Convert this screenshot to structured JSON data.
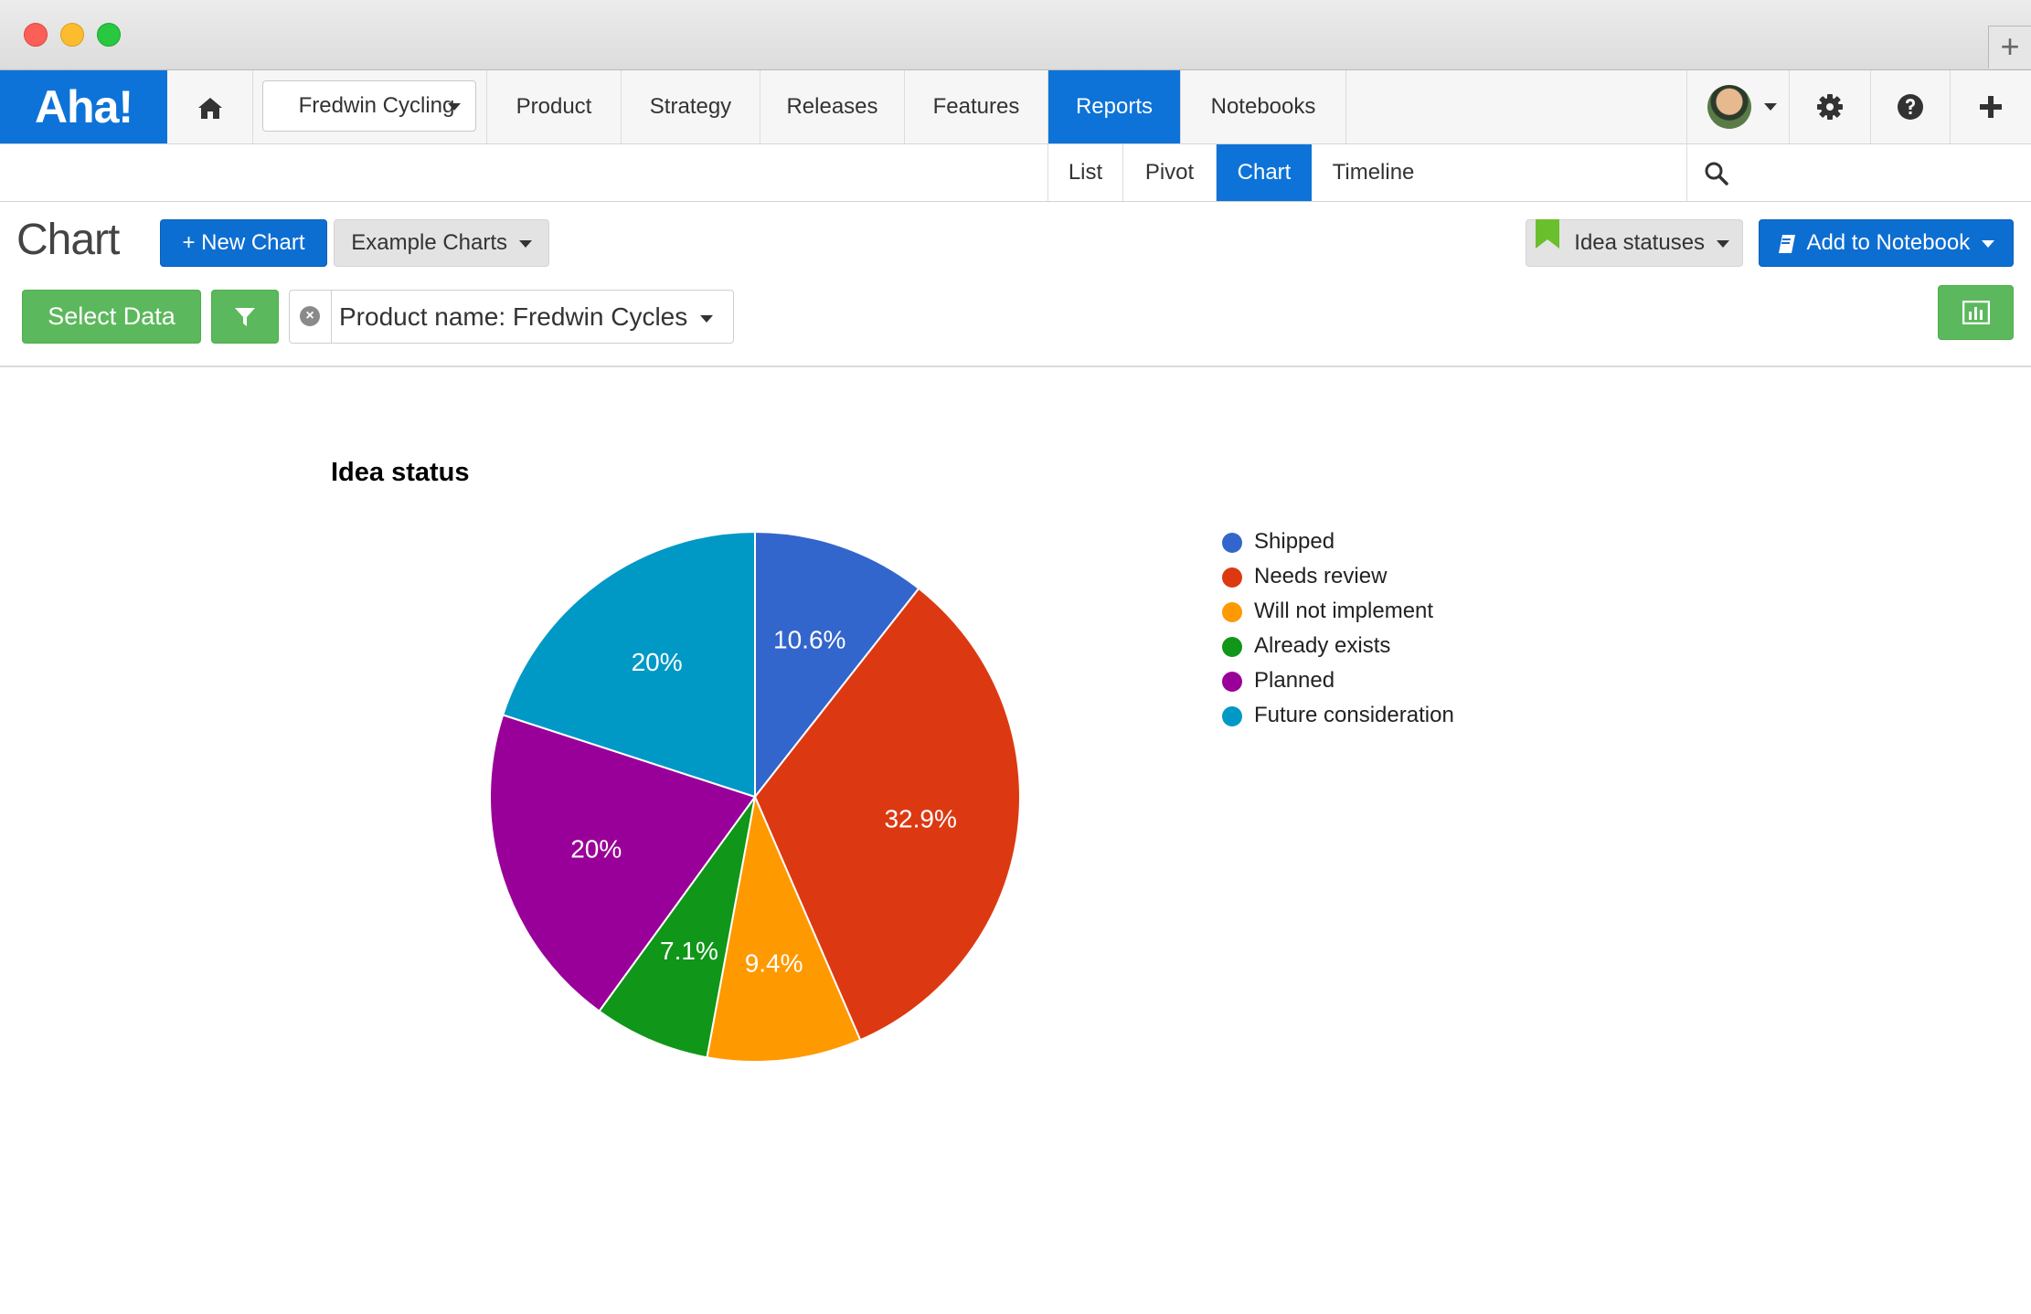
{
  "app": {
    "logo": "Aha!",
    "workspace": "Fredwin Cycling"
  },
  "nav": {
    "items": [
      {
        "label": "Product"
      },
      {
        "label": "Strategy"
      },
      {
        "label": "Releases"
      },
      {
        "label": "Features"
      },
      {
        "label": "Reports",
        "active": true
      },
      {
        "label": "Notebooks"
      }
    ]
  },
  "subnav": {
    "tabs": [
      {
        "label": "List"
      },
      {
        "label": "Pivot"
      },
      {
        "label": "Chart",
        "active": true
      },
      {
        "label": "Timeline"
      }
    ]
  },
  "toolbar": {
    "page_title": "Chart",
    "new_chart": "+ New Chart",
    "example_charts": "Example Charts",
    "saved_view": "Idea statuses",
    "add_to_notebook": "Add to Notebook",
    "select_data": "Select Data",
    "filter_label": "Product name: Fredwin Cycles"
  },
  "icons": {
    "home": "home-icon",
    "settings": "gear-icon",
    "help": "question-icon",
    "add": "plus-icon",
    "search": "search-icon",
    "filter": "funnel-icon",
    "bookmark": "bookmark-icon",
    "notebook": "notebook-icon",
    "chart_type": "bar-chart-icon"
  },
  "colors": {
    "accent": "#0d73d8",
    "green": "#5cb85c",
    "bookmark": "#6abf2c"
  },
  "chart_data": {
    "type": "pie",
    "title": "Idea status",
    "legend_position": "right",
    "slices": [
      {
        "label": "Shipped",
        "value": 10.6,
        "display": "10.6%",
        "color": "#3366cc"
      },
      {
        "label": "Needs review",
        "value": 32.9,
        "display": "32.9%",
        "color": "#dc3912"
      },
      {
        "label": "Will not implement",
        "value": 9.4,
        "display": "9.4%",
        "color": "#ff9900"
      },
      {
        "label": "Already exists",
        "value": 7.1,
        "display": "7.1%",
        "color": "#109618"
      },
      {
        "label": "Planned",
        "value": 20,
        "display": "20%",
        "color": "#990099"
      },
      {
        "label": "Future consideration",
        "value": 20,
        "display": "20%",
        "color": "#0099c6"
      }
    ]
  }
}
